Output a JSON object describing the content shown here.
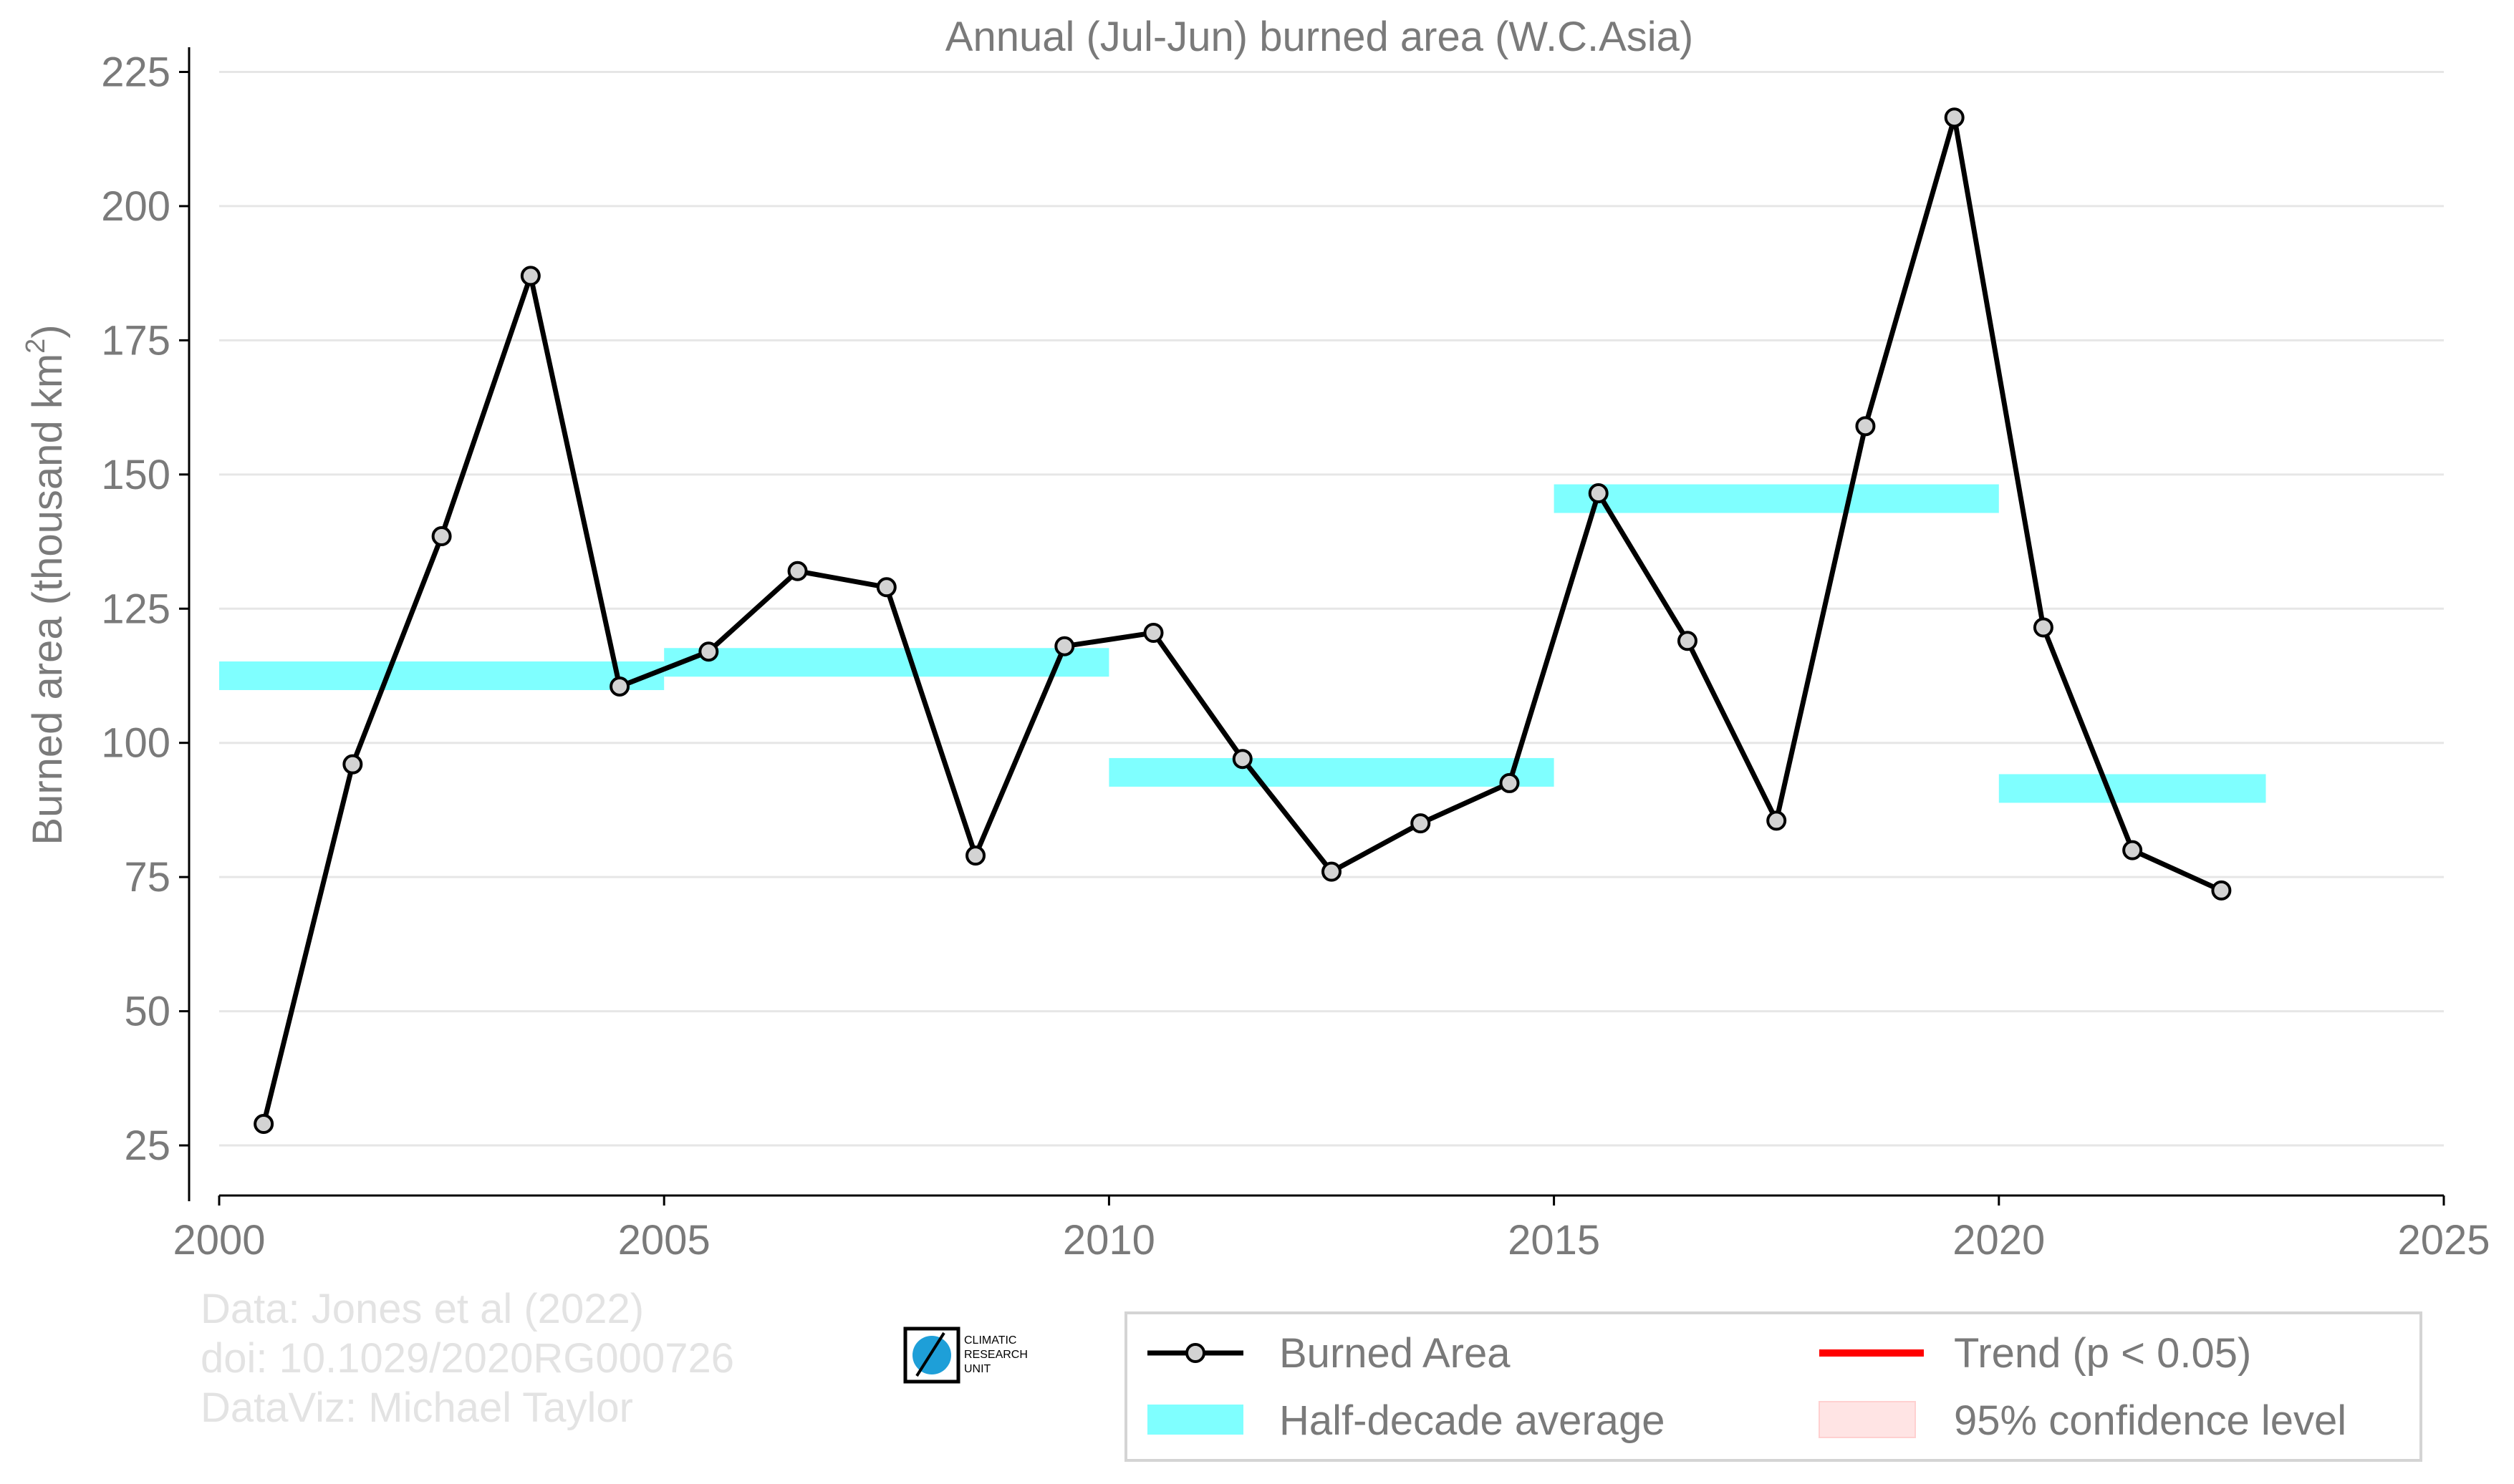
{
  "chart_data": {
    "type": "line",
    "title": "Annual (Jul-Jun) burned area (W.C.Asia)",
    "ylabel": "Burned area (thousand km",
    "ylabel_superscript": "2",
    "ylabel_close": ")",
    "xlabel": "",
    "xlim": [
      2000,
      2025
    ],
    "ylim": [
      17,
      228
    ],
    "x_ticks": [
      2000,
      2005,
      2010,
      2015,
      2020,
      2025
    ],
    "y_ticks": [
      25,
      50,
      75,
      100,
      125,
      150,
      175,
      200,
      225
    ],
    "grid": true,
    "legend_position": "bottom-right",
    "series": [
      {
        "name": "Burned Area",
        "color": "#000000",
        "marker_fill": "#d3d3d3",
        "x": [
          2000.5,
          2001.5,
          2002.5,
          2003.5,
          2004.5,
          2005.5,
          2006.5,
          2007.5,
          2008.5,
          2009.5,
          2010.5,
          2011.5,
          2012.5,
          2013.5,
          2014.5,
          2015.5,
          2016.5,
          2017.5,
          2018.5,
          2019.5,
          2020.5,
          2021.5,
          2022.5
        ],
        "values": [
          29,
          96,
          138.5,
          187,
          110.5,
          117,
          132,
          129,
          79,
          118,
          120.5,
          97,
          76,
          85,
          92.5,
          146.5,
          119,
          85.5,
          159,
          216.5,
          121.5,
          80,
          72.5
        ]
      }
    ],
    "half_decade_averages": {
      "name": "Half-decade average",
      "color": "#7fffff",
      "bars": [
        {
          "x_start": 2000,
          "x_end": 2005,
          "value": 112.5
        },
        {
          "x_start": 2005,
          "x_end": 2010,
          "value": 115
        },
        {
          "x_start": 2010,
          "x_end": 2015,
          "value": 94.5
        },
        {
          "x_start": 2015,
          "x_end": 2020,
          "value": 145.5
        },
        {
          "x_start": 2020,
          "x_end": 2023,
          "value": 91.5
        }
      ]
    },
    "legend": [
      {
        "label": "Burned Area",
        "kind": "line-marker",
        "color": "#000000"
      },
      {
        "label": "Trend (p < 0.05)",
        "kind": "line",
        "color": "#ff0000"
      },
      {
        "label": "Half-decade average",
        "kind": "band",
        "color": "#7fffff"
      },
      {
        "label": "95% confidence level",
        "kind": "box",
        "color": "#ffe4e4"
      }
    ]
  },
  "credits": {
    "line1": "Data: Jones et al (2022)",
    "line2": "doi: 10.1029/2020RG000726",
    "line3": "DataViz: Michael Taylor"
  },
  "logo": {
    "text": [
      "CLIMATIC",
      "RESEARCH",
      "UNIT"
    ],
    "globe_color": "#1e9fd8"
  }
}
